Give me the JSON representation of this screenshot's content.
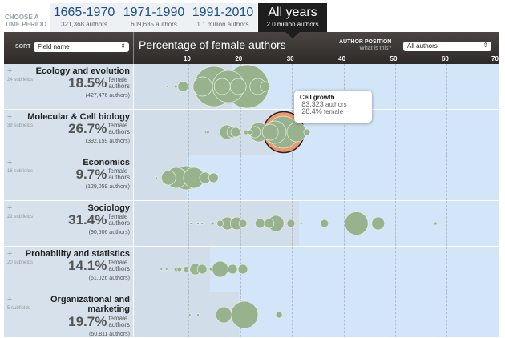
{
  "period": {
    "label": "CHOOSE A TIME PERIOD",
    "tabs": [
      {
        "years": "1665-1970",
        "count": "321,368 authors",
        "active": false
      },
      {
        "years": "1971-1990",
        "count": "609,635 authors",
        "active": false
      },
      {
        "years": "1991-2010",
        "count": "1.1 million authors",
        "active": false
      },
      {
        "years": "All years",
        "count": "2.0 million authors",
        "active": true
      }
    ]
  },
  "header": {
    "sort_label": "SORT",
    "sort_value": "Field name",
    "title": "Percentage of female authors",
    "author_position_label": "AUTHOR POSITION",
    "what_is_this": "What is this?",
    "author_position_value": "All authors",
    "ticks": [
      "10",
      "20",
      "30",
      "40",
      "50",
      "60",
      "70+"
    ]
  },
  "colors": {
    "bubble": "#98b28e",
    "highlight": "#f0956c",
    "chart_bg": "#d3e5f8",
    "shade": "#d1dde8"
  },
  "chart_data": {
    "type": "scatter",
    "x_label": "Percentage of female authors",
    "xlim": [
      0,
      70
    ],
    "note_bubble": "[percent female, authors]",
    "rows": [
      {
        "field": "Ecology and evolution",
        "subfields": "24 subfields",
        "pct": "18.5%",
        "pct_value": 18.5,
        "female": "female",
        "authors_word": "authors",
        "authors": "(427,476 authors)",
        "bubbles": [
          [
            5.9,
            290
          ],
          [
            7.5,
            510
          ],
          [
            8.9,
            5400
          ],
          [
            12.7,
            18400
          ],
          [
            14.9,
            80000
          ],
          [
            16.5,
            12800
          ],
          [
            17.7,
            51200
          ],
          [
            19.6,
            12800
          ],
          [
            21.3,
            93300
          ],
          [
            23.4,
            12800
          ],
          [
            24.8,
            4600
          ]
        ]
      },
      {
        "field": "Molecular & Cell biology",
        "subfields": "39 subfields",
        "pct": "26.7%",
        "pct_value": 26.7,
        "female": "female",
        "authors_word": "authors",
        "authors": "(392,159 authors)",
        "bubbles": [
          [
            13.4,
            510
          ],
          [
            13.7,
            510
          ],
          [
            17.4,
            10400
          ],
          [
            18.5,
            6300
          ],
          [
            19.1,
            4600
          ],
          [
            21.1,
            1150
          ],
          [
            21.9,
            1150
          ],
          [
            22.8,
            6300
          ],
          [
            23.6,
            18400
          ],
          [
            25.8,
            12800
          ],
          [
            26.7,
            25100
          ],
          [
            28.3,
            51200
          ],
          [
            30.9,
            18400
          ],
          [
            32.9,
            2050
          ]
        ],
        "highlight": {
          "name": "Cell growth",
          "pct": 28.4,
          "authors": 83323
        }
      },
      {
        "field": "Economics",
        "subfields": "16 subfields",
        "pct": "9.7%",
        "pct_value": 9.7,
        "female": "female",
        "authors_word": "authors",
        "authors": "(129,059 authors)",
        "bubbles": [
          [
            3.7,
            290
          ],
          [
            6.1,
            10400
          ],
          [
            7.6,
            21600
          ],
          [
            9.5,
            28800
          ],
          [
            11.0,
            21600
          ],
          [
            13.2,
            6300
          ],
          [
            14.8,
            4600
          ]
        ]
      },
      {
        "field": "Sociology",
        "subfields": "22 subfields",
        "pct": "31.4%",
        "pct_value": 31.4,
        "female": "female",
        "authors_word": "authors",
        "authors": "(90,506 authors)",
        "bubbles": [
          [
            10.4,
            290
          ],
          [
            11.8,
            290
          ],
          [
            12.6,
            290
          ],
          [
            14.6,
            510
          ],
          [
            16.1,
            2050
          ],
          [
            17.5,
            8200
          ],
          [
            19.3,
            8200
          ],
          [
            20.5,
            3200
          ],
          [
            23.8,
            4600
          ],
          [
            25.6,
            4600
          ],
          [
            26.9,
            12800
          ],
          [
            29.8,
            3200
          ],
          [
            31.8,
            290
          ],
          [
            36.3,
            3200
          ],
          [
            42.5,
            27000
          ],
          [
            46.7,
            8200
          ],
          [
            57.8,
            510
          ]
        ]
      },
      {
        "field": "Probability and statistics",
        "subfields": "20 subfields",
        "pct": "14.1%",
        "pct_value": 14.1,
        "female": "female",
        "authors_word": "authors",
        "authors": "(51,026 authors)",
        "bubbles": [
          [
            4.7,
            290
          ],
          [
            5.7,
            290
          ],
          [
            7.6,
            1150
          ],
          [
            8.2,
            1150
          ],
          [
            9.5,
            1570
          ],
          [
            11.3,
            6300
          ],
          [
            12.6,
            4600
          ],
          [
            14.3,
            510
          ],
          [
            16.1,
            12800
          ],
          [
            18.5,
            4600
          ],
          [
            20.5,
            4600
          ]
        ]
      },
      {
        "field": "Organizational and marketing",
        "subfields": "5 subfields",
        "pct": "19.7%",
        "pct_value": 19.7,
        "female": "female",
        "authors_word": "authors",
        "authors": "(50,811 authors)",
        "bubbles": [
          [
            10.2,
            290
          ],
          [
            11.8,
            290
          ],
          [
            16.8,
            12800
          ],
          [
            20.8,
            37000
          ],
          [
            27.5,
            2050
          ]
        ]
      }
    ]
  },
  "tooltip": {
    "title": "Cell growth",
    "authors": "83,323",
    "authors_word": "authors",
    "pct": "28.4%",
    "female_word": "female"
  }
}
